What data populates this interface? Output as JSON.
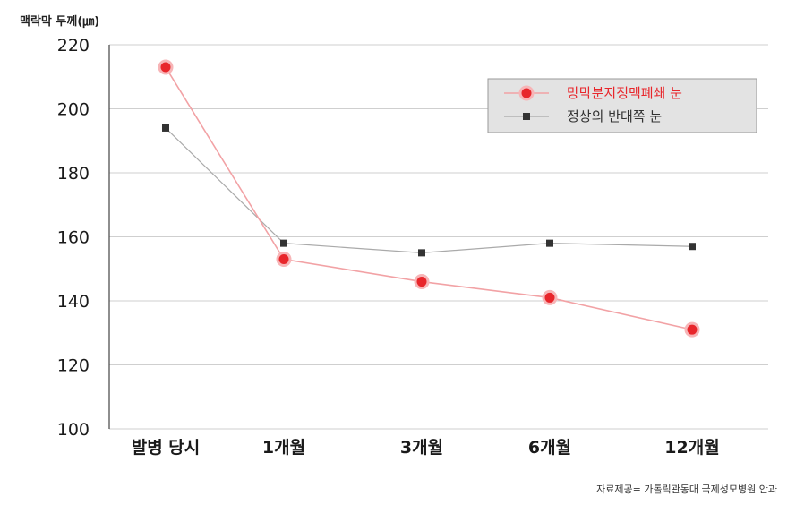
{
  "chart_data": {
    "type": "line",
    "ylabel": "맥락막 두께(㎛)",
    "categories": [
      "발병 당시",
      "1개월",
      "3개월",
      "6개월",
      "12개월"
    ],
    "ylim": [
      100,
      220
    ],
    "yticks": [
      100,
      120,
      140,
      160,
      180,
      200,
      220
    ],
    "grid": true,
    "legend_position": "top-right",
    "series": [
      {
        "name": "망막분지정맥폐쇄 눈",
        "values": [
          213,
          153,
          146,
          141,
          131
        ],
        "color": "#e8262b",
        "marker": "circle"
      },
      {
        "name": "정상의 반대쪽 눈",
        "values": [
          194,
          158,
          155,
          158,
          157
        ],
        "color": "#333333",
        "marker": "square"
      }
    ],
    "source": "자료제공= 가톨릭관동대 국제성모병원 안과"
  }
}
